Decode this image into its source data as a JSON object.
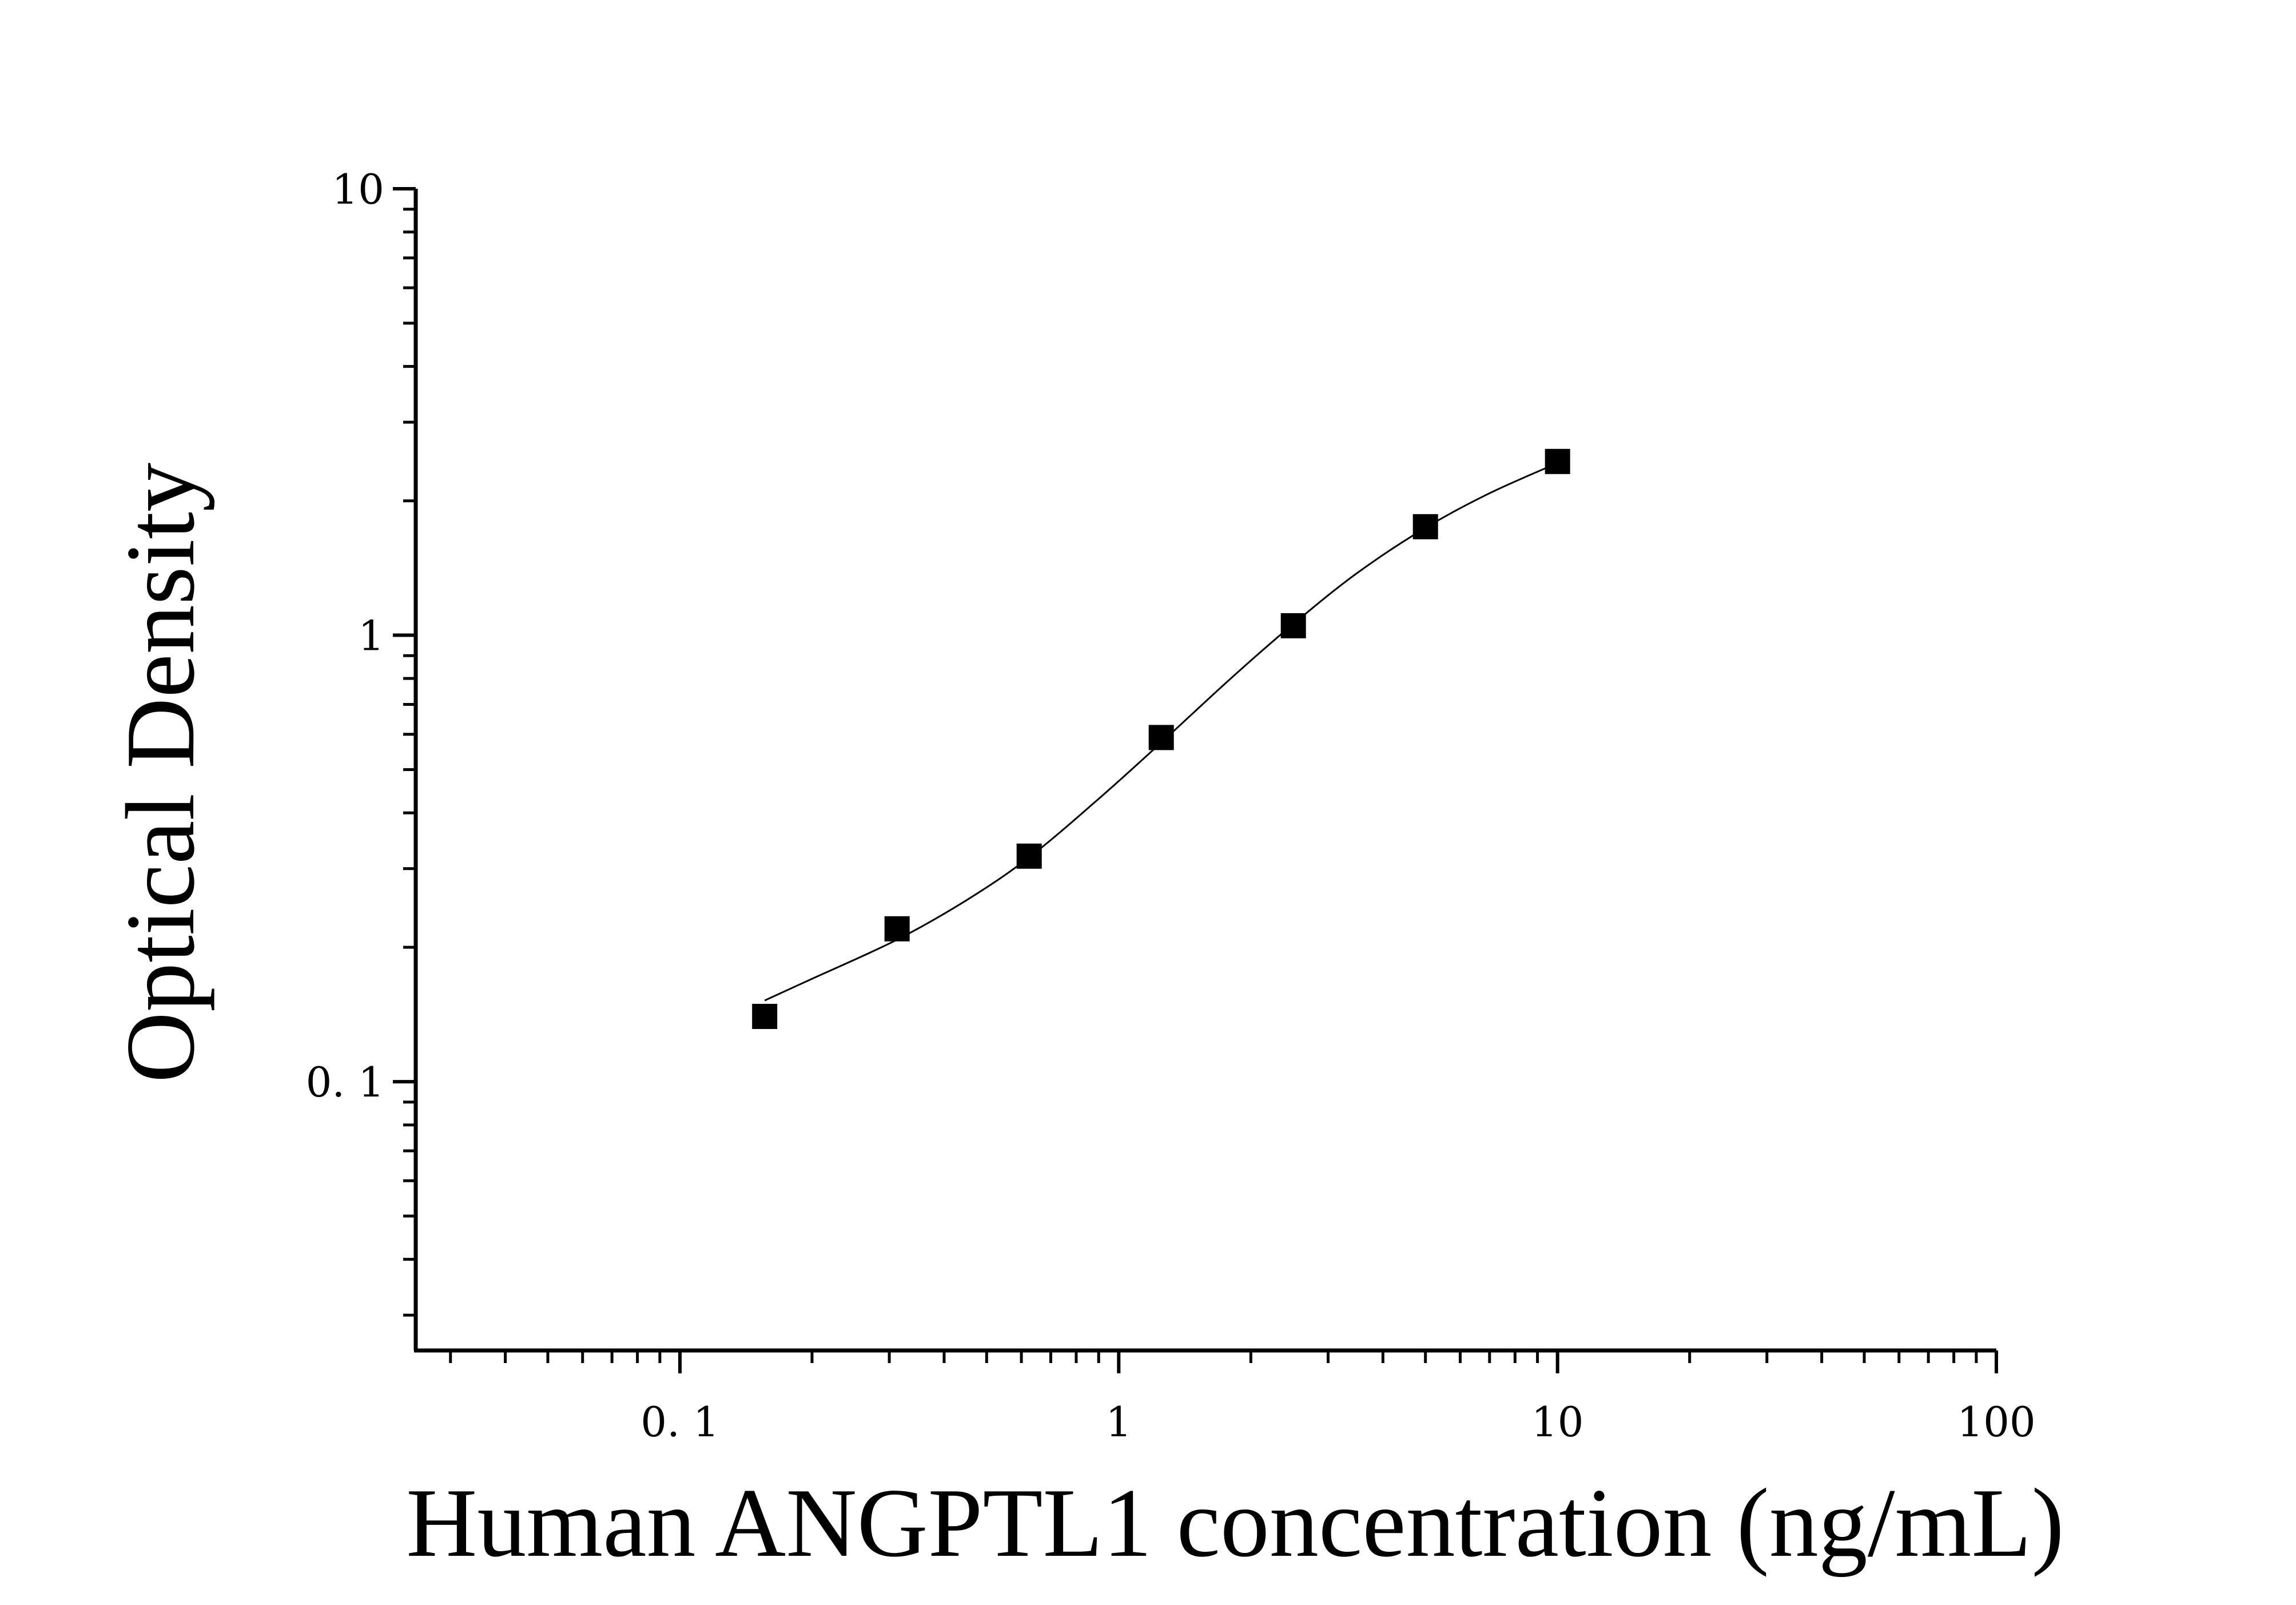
{
  "chart_data": {
    "type": "scatter",
    "xlabel": "Human ANGPTL1 concentration (ng/mL)",
    "ylabel": "Optical Density",
    "x_scale": "log",
    "y_scale": "log",
    "xlim": [
      0.025,
      100
    ],
    "ylim": [
      0.025,
      10
    ],
    "x_ticks": [
      {
        "value": 0.1,
        "label": "0. 1"
      },
      {
        "value": 1,
        "label": "1"
      },
      {
        "value": 10,
        "label": "10"
      },
      {
        "value": 100,
        "label": "100"
      }
    ],
    "y_ticks": [
      {
        "value": 0.1,
        "label": "0. 1"
      },
      {
        "value": 1,
        "label": "1"
      },
      {
        "value": 10,
        "label": "10"
      }
    ],
    "grid": false,
    "points": [
      {
        "x": 0.156,
        "y": 0.14
      },
      {
        "x": 0.3125,
        "y": 0.22
      },
      {
        "x": 0.625,
        "y": 0.32
      },
      {
        "x": 1.25,
        "y": 0.59
      },
      {
        "x": 2.5,
        "y": 1.05
      },
      {
        "x": 5,
        "y": 1.75
      },
      {
        "x": 10,
        "y": 2.45
      }
    ],
    "curve": [
      {
        "x": 0.156,
        "y": 0.152
      },
      {
        "x": 0.2,
        "y": 0.17
      },
      {
        "x": 0.3125,
        "y": 0.208
      },
      {
        "x": 0.45,
        "y": 0.255
      },
      {
        "x": 0.625,
        "y": 0.318
      },
      {
        "x": 0.9,
        "y": 0.43
      },
      {
        "x": 1.25,
        "y": 0.575
      },
      {
        "x": 1.8,
        "y": 0.8
      },
      {
        "x": 2.5,
        "y": 1.06
      },
      {
        "x": 3.5,
        "y": 1.38
      },
      {
        "x": 5,
        "y": 1.74
      },
      {
        "x": 7,
        "y": 2.08
      },
      {
        "x": 10,
        "y": 2.43
      }
    ]
  }
}
